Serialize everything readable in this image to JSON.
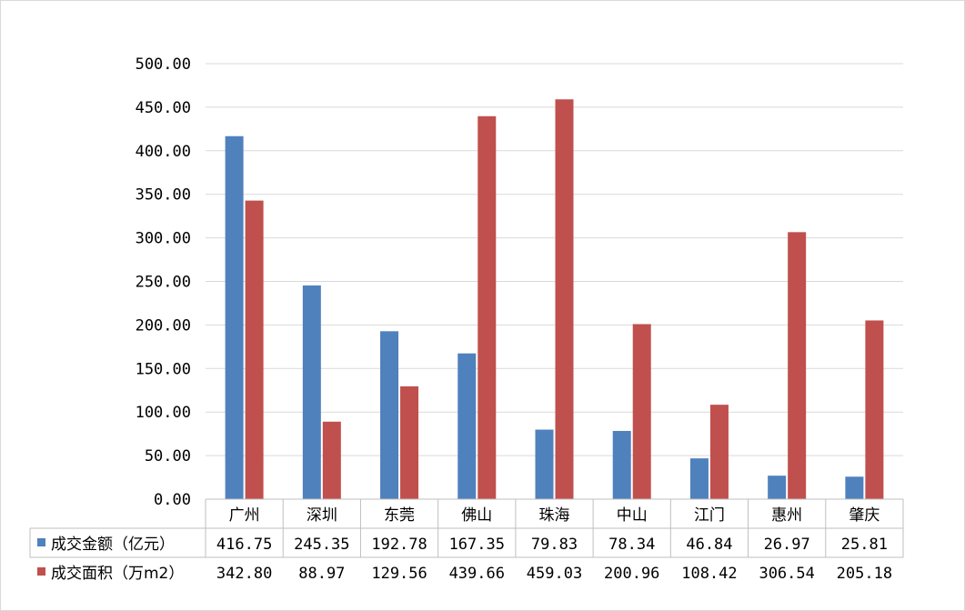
{
  "chart_data": {
    "type": "bar",
    "title": "",
    "xlabel": "",
    "ylabel": "",
    "ylim": [
      0,
      500
    ],
    "yticks": [
      "0.00",
      "50.00",
      "100.00",
      "150.00",
      "200.00",
      "250.00",
      "300.00",
      "350.00",
      "400.00",
      "450.00",
      "500.00"
    ],
    "grid": true,
    "legend": "data-table",
    "categories": [
      "广州",
      "深圳",
      "东莞",
      "佛山",
      "珠海",
      "中山",
      "江门",
      "惠州",
      "肇庆"
    ],
    "series": [
      {
        "name": "成交金额（亿元）",
        "color": "#4F81BD",
        "values": [
          416.75,
          245.35,
          192.78,
          167.35,
          79.83,
          78.34,
          46.84,
          26.97,
          25.81
        ],
        "labels": [
          "416.75",
          "245.35",
          "192.78",
          "167.35",
          "79.83",
          "78.34",
          "46.84",
          "26.97",
          "25.81"
        ]
      },
      {
        "name": "成交面积（万m2）",
        "color": "#C0504D",
        "values": [
          342.8,
          88.97,
          129.56,
          439.66,
          459.03,
          200.96,
          108.42,
          306.54,
          205.18
        ],
        "labels": [
          "342.80",
          "88.97",
          "129.56",
          "439.66",
          "459.03",
          "200.96",
          "108.42",
          "306.54",
          "205.18"
        ]
      }
    ]
  }
}
